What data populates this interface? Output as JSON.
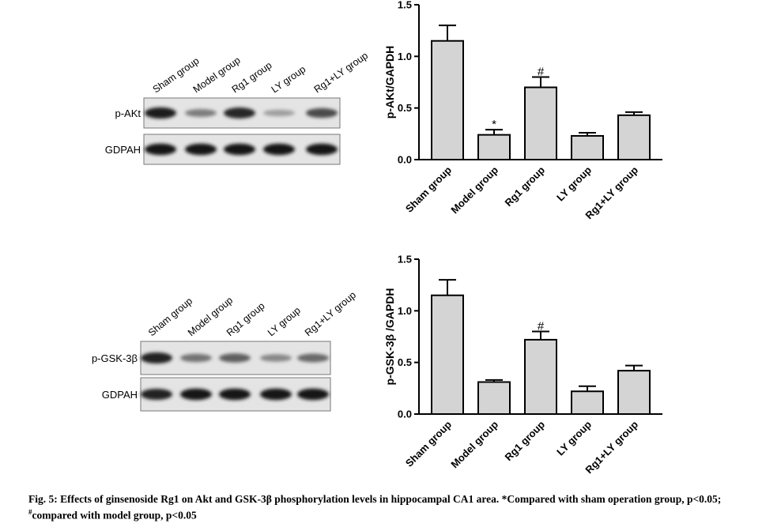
{
  "blots": [
    {
      "lanes": [
        "Sham group",
        "Model group",
        "Rg1 group",
        "LY group",
        "Rg1+LY group"
      ],
      "rows": [
        {
          "label": "p-AKt",
          "intensities": [
            0.92,
            0.45,
            0.88,
            0.28,
            0.7
          ]
        },
        {
          "label": "GDPAH",
          "intensities": [
            0.95,
            0.95,
            0.95,
            0.95,
            0.95
          ]
        }
      ]
    },
    {
      "lanes": [
        "Sham group",
        "Model group",
        "Rg1 group",
        "LY group",
        "Rg1+LY group"
      ],
      "rows": [
        {
          "label": "p-GSK-3β",
          "intensities": [
            0.9,
            0.5,
            0.6,
            0.4,
            0.55
          ]
        },
        {
          "label": "GDPAH",
          "intensities": [
            0.9,
            0.95,
            0.95,
            0.95,
            0.95
          ]
        }
      ]
    }
  ],
  "chart_data": [
    {
      "type": "bar",
      "categories": [
        "Sham group",
        "Model group",
        "Rg1 group",
        "LY group",
        "Rg1+LY group"
      ],
      "values": [
        1.15,
        0.24,
        0.7,
        0.23,
        0.43
      ],
      "errors": [
        0.15,
        0.05,
        0.1,
        0.03,
        0.03
      ],
      "annotations": [
        "",
        "*",
        "#",
        "",
        ""
      ],
      "ylabel": "p-AKt/GAPDH",
      "ylim": [
        0,
        1.5
      ],
      "yticks": [
        "0.0",
        "0.5",
        "1.0",
        "1.5"
      ],
      "grid": false,
      "bar_color": "#d4d4d4"
    },
    {
      "type": "bar",
      "categories": [
        "Sham group",
        "Model group",
        "Rg1 group",
        "LY group",
        "Rg1+LY group"
      ],
      "values": [
        1.15,
        0.31,
        0.72,
        0.22,
        0.42
      ],
      "errors": [
        0.15,
        0.02,
        0.08,
        0.05,
        0.05
      ],
      "annotations": [
        "",
        "",
        "#",
        "",
        ""
      ],
      "ylabel": "p-GSK-3β /GAPDH",
      "ylim": [
        0,
        1.5
      ],
      "yticks": [
        "0.0",
        "0.5",
        "1.0",
        "1.5"
      ],
      "grid": false,
      "bar_color": "#d4d4d4"
    }
  ],
  "caption": {
    "prefix": "Fig. 5: Effects of ginsenoside Rg1 on Akt and GSK-3β phosphorylation levels in hippocampal CA1 area. *Compared with sham operation group, p<0.05; ",
    "sup": "#",
    "suffix": "compared with model group, p<0.05"
  }
}
